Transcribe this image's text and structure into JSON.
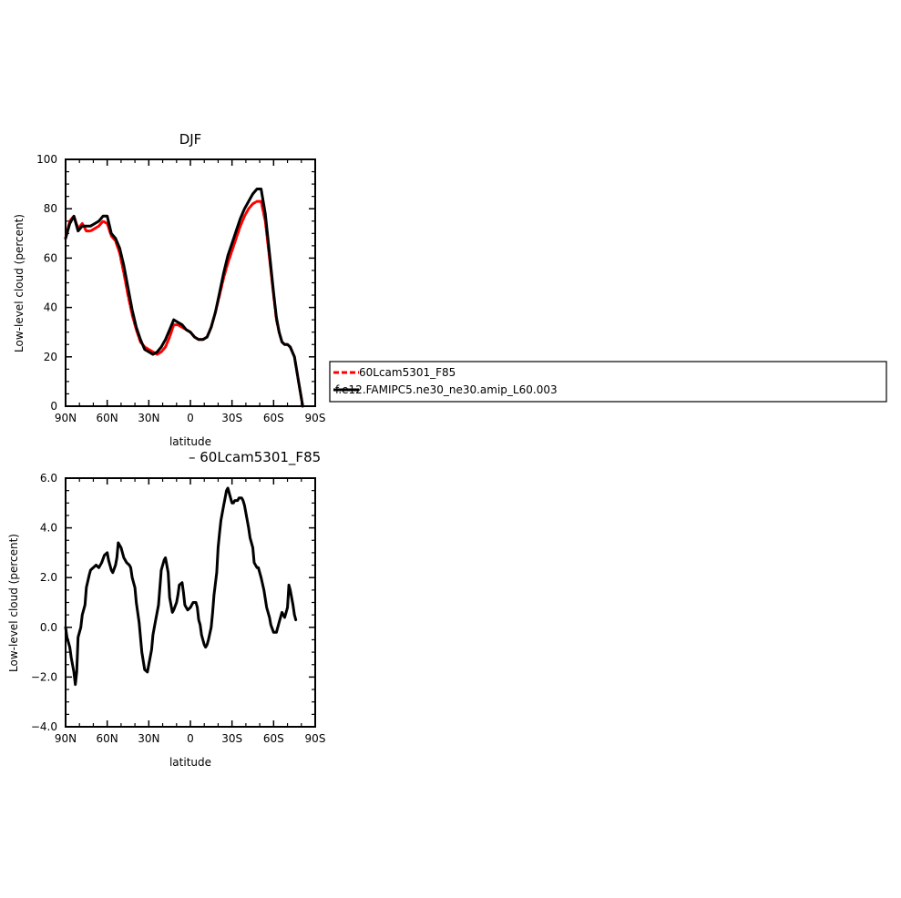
{
  "chart_data": [
    {
      "type": "line",
      "title": "DJF",
      "xlabel": "latitude",
      "ylabel": "Low-level cloud (percent)",
      "xlim": [
        90,
        -90
      ],
      "ylim": [
        0,
        100
      ],
      "x_tick_values": [
        90,
        60,
        30,
        0,
        -30,
        -60,
        -90
      ],
      "x_tick_labels": [
        "90N",
        "60N",
        "30N",
        "0",
        "30S",
        "60S",
        "90S"
      ],
      "y_tick_values": [
        0,
        20,
        40,
        60,
        80,
        100
      ],
      "y_tick_labels": [
        "0",
        "20",
        "40",
        "60",
        "80",
        "100"
      ],
      "legend": {
        "position": "right"
      },
      "series": [
        {
          "name": "60Lcam5301_F85",
          "color": "#ff0000",
          "dash": true,
          "x": [
            90,
            87,
            84,
            81,
            78,
            75,
            72,
            69,
            66,
            63,
            60,
            57,
            54,
            51,
            48,
            45,
            42,
            39,
            36,
            33,
            30,
            27,
            24,
            21,
            18,
            15,
            12,
            9,
            6,
            3,
            0,
            -3,
            -6,
            -9,
            -12,
            -15,
            -18,
            -21,
            -24,
            -27,
            -30,
            -33,
            -36,
            -39,
            -42,
            -45,
            -48,
            -51,
            -54,
            -57,
            -60,
            -62,
            -64,
            -66,
            -68,
            -70,
            -72,
            -75,
            -78,
            -81,
            -84,
            -86,
            -88,
            -90
          ],
          "y": [
            68,
            75,
            77,
            72,
            74,
            71,
            71,
            72,
            73,
            75,
            74,
            69,
            67,
            62,
            54,
            45,
            37,
            31,
            26,
            24,
            23,
            22,
            21,
            22,
            24,
            28,
            33,
            33,
            32,
            31,
            30,
            28,
            27,
            27,
            28,
            32,
            38,
            45,
            52,
            58,
            63,
            68,
            73,
            77,
            80,
            82,
            83,
            83,
            75,
            60,
            45,
            35,
            30,
            26,
            25,
            25,
            24,
            20,
            10,
            0,
            null,
            null,
            null,
            null
          ]
        },
        {
          "name": "f.e12.FAMIPC5.ne30_ne30.amip_L60.003",
          "color": "#000000",
          "dash": false,
          "x": [
            90,
            87,
            84,
            81,
            78,
            75,
            72,
            69,
            66,
            63,
            60,
            57,
            54,
            51,
            48,
            45,
            42,
            39,
            36,
            33,
            30,
            27,
            24,
            21,
            18,
            15,
            12,
            9,
            6,
            3,
            0,
            -3,
            -6,
            -9,
            -12,
            -15,
            -18,
            -21,
            -24,
            -27,
            -30,
            -33,
            -36,
            -39,
            -42,
            -45,
            -48,
            -51,
            -54,
            -57,
            -60,
            -62,
            -64,
            -66,
            -68,
            -70,
            -72,
            -75,
            -78,
            -81,
            -84,
            -86,
            -88,
            -90
          ],
          "y": [
            68,
            74,
            77,
            71,
            73,
            73,
            73,
            74,
            75,
            77,
            77,
            70,
            68,
            64,
            57,
            48,
            39,
            32,
            27,
            23,
            22,
            21,
            22,
            24,
            27,
            31,
            35,
            34,
            33,
            31,
            30,
            28,
            27,
            27,
            28,
            32,
            38,
            46,
            54,
            61,
            66,
            71,
            76,
            80,
            83,
            86,
            88,
            88,
            78,
            62,
            46,
            36,
            30,
            26,
            25,
            25,
            24,
            20,
            10,
            0,
            null,
            null,
            null,
            null
          ]
        }
      ]
    },
    {
      "type": "line",
      "title": "– 60Lcam5301_F85",
      "xlabel": "latitude",
      "ylabel": "Low-level cloud (percent)",
      "xlim": [
        90,
        -90
      ],
      "ylim": [
        -4.0,
        6.0
      ],
      "x_tick_values": [
        90,
        60,
        30,
        0,
        -30,
        -60,
        -90
      ],
      "x_tick_labels": [
        "90N",
        "60N",
        "30N",
        "0",
        "30S",
        "60S",
        "90S"
      ],
      "y_tick_values": [
        -4,
        -2,
        0,
        2,
        4,
        6
      ],
      "y_tick_labels": [
        "−4.0",
        "−2.0",
        "0.0",
        "2.0",
        "4.0",
        "6.0"
      ],
      "series": [
        {
          "color": "#000000",
          "x": [
            90,
            89,
            87,
            86,
            84,
            83,
            82,
            81,
            79,
            78,
            76,
            75,
            73,
            72,
            70,
            68,
            66,
            64,
            62,
            60,
            59,
            57,
            56,
            54,
            53,
            52,
            50,
            48,
            47,
            46,
            44,
            43,
            42,
            40,
            39,
            37,
            36,
            35,
            33,
            31,
            30,
            28,
            27,
            25,
            23,
            22,
            21,
            19,
            18,
            16,
            15,
            13,
            12,
            10,
            9,
            8,
            6,
            5,
            4,
            3,
            2,
            0,
            -1,
            -2,
            -4,
            -5,
            -6,
            -7,
            -8,
            -9,
            -10,
            -11,
            -12,
            -13,
            -15,
            -16,
            -17,
            -19,
            -20,
            -21,
            -22,
            -24,
            -25,
            -26,
            -27,
            -29,
            -30,
            -31,
            -32,
            -34,
            -35,
            -37,
            -38,
            -39,
            -40,
            -41,
            -42,
            -43,
            -45,
            -46,
            -48,
            -49,
            -51,
            -53,
            -55,
            -57,
            -58,
            -60,
            -62,
            -64,
            -66,
            -68,
            -70,
            -71,
            -72,
            -74,
            -75,
            -76,
            -78,
            -79,
            -80,
            -82,
            -84,
            -86,
            -87,
            -88,
            -89,
            -90
          ],
          "y": [
            0.0,
            -0.4,
            -0.8,
            -1.2,
            -1.8,
            -2.3,
            -1.8,
            -0.4,
            0.0,
            0.5,
            0.9,
            1.6,
            2.1,
            2.3,
            2.4,
            2.5,
            2.4,
            2.6,
            2.9,
            3.0,
            2.7,
            2.3,
            2.2,
            2.5,
            2.8,
            3.4,
            3.2,
            2.8,
            2.7,
            2.6,
            2.5,
            2.4,
            2.0,
            1.6,
            1.0,
            0.2,
            -0.4,
            -1.0,
            -1.7,
            -1.8,
            -1.5,
            -0.9,
            -0.3,
            0.3,
            0.9,
            1.6,
            2.3,
            2.7,
            2.8,
            2.2,
            1.2,
            0.6,
            0.7,
            1.0,
            1.3,
            1.7,
            1.8,
            1.4,
            0.9,
            0.8,
            0.7,
            0.8,
            0.9,
            1.0,
            1.0,
            0.8,
            0.3,
            0.1,
            -0.3,
            -0.5,
            -0.7,
            -0.8,
            -0.7,
            -0.5,
            0.0,
            0.6,
            1.3,
            2.2,
            3.2,
            3.8,
            4.3,
            4.9,
            5.2,
            5.5,
            5.6,
            5.2,
            5.0,
            5.0,
            5.1,
            5.1,
            5.2,
            5.2,
            5.1,
            4.9,
            4.6,
            4.3,
            4.0,
            3.6,
            3.2,
            2.6,
            2.4,
            2.4,
            2.0,
            1.5,
            0.8,
            0.4,
            0.1,
            -0.2,
            -0.2,
            0.2,
            0.6,
            0.4,
            0.8,
            1.7,
            1.5,
            0.9,
            0.5,
            0.3,
            null,
            null,
            null,
            null,
            null,
            null,
            null,
            null,
            null,
            null
          ]
        }
      ]
    }
  ]
}
